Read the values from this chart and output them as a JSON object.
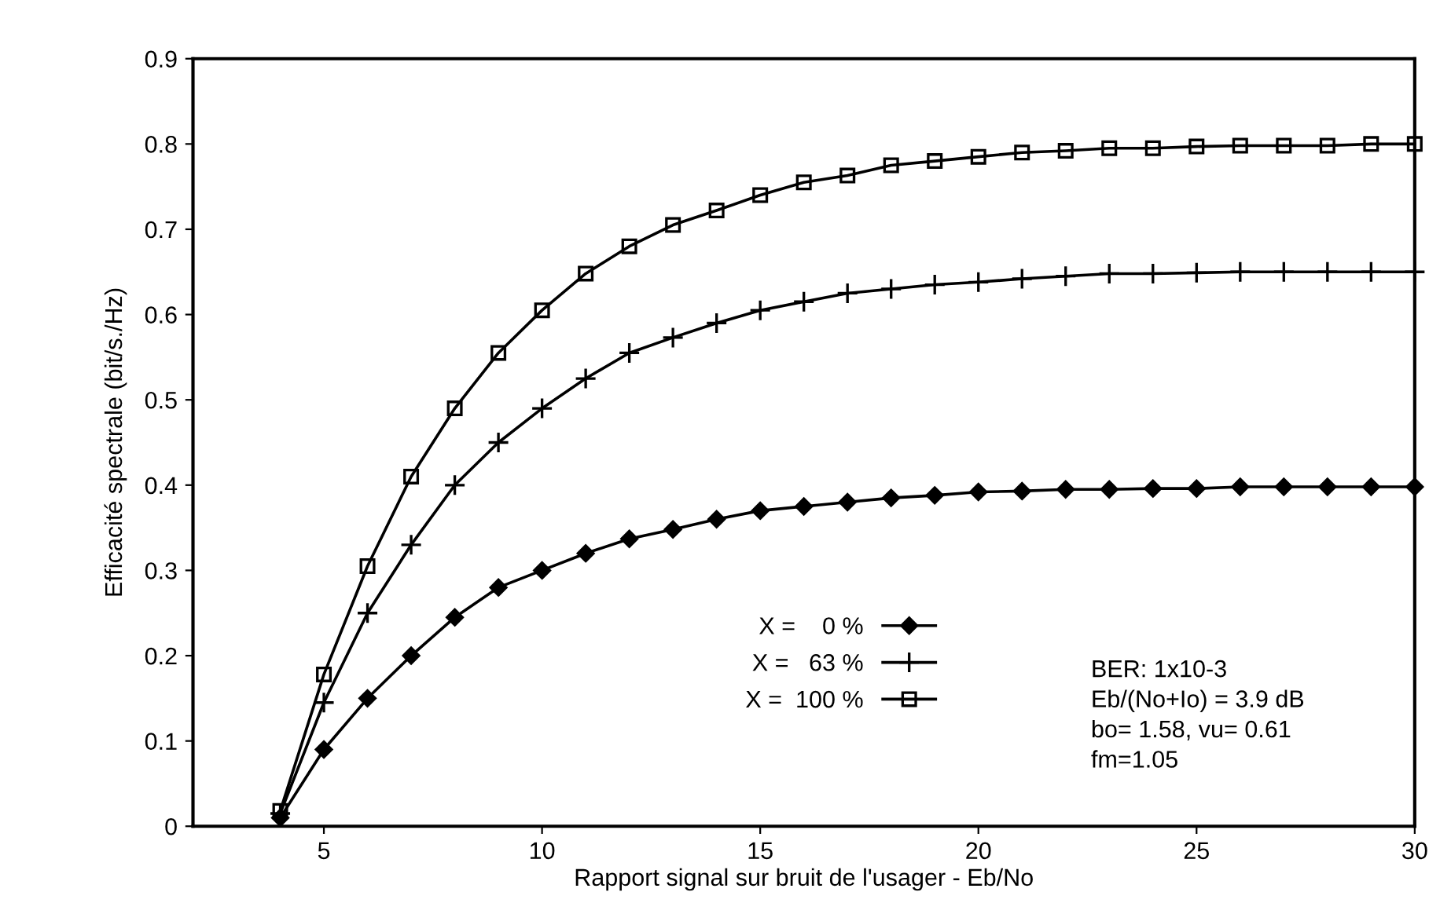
{
  "chart_data": {
    "type": "line",
    "xlabel": "Rapport signal sur bruit de l'usager - Eb/No",
    "ylabel": "Efficacité spectrale (bit/s./Hz)",
    "x": [
      4,
      5,
      6,
      7,
      8,
      9,
      10,
      11,
      12,
      13,
      14,
      15,
      16,
      17,
      18,
      19,
      20,
      21,
      22,
      23,
      24,
      25,
      26,
      27,
      28,
      29,
      30
    ],
    "series": [
      {
        "name": "X =    0 %",
        "color": "#000000",
        "marker": "diamond",
        "values": [
          0.01,
          0.09,
          0.15,
          0.2,
          0.245,
          0.28,
          0.3,
          0.32,
          0.337,
          0.348,
          0.36,
          0.37,
          0.375,
          0.38,
          0.385,
          0.388,
          0.392,
          0.393,
          0.395,
          0.395,
          0.396,
          0.396,
          0.398,
          0.398,
          0.398,
          0.398,
          0.398
        ]
      },
      {
        "name": "X =   63 %",
        "color": "#000000",
        "marker": "cross",
        "values": [
          0.015,
          0.145,
          0.25,
          0.33,
          0.4,
          0.45,
          0.49,
          0.525,
          0.555,
          0.573,
          0.59,
          0.605,
          0.615,
          0.625,
          0.63,
          0.635,
          0.638,
          0.642,
          0.645,
          0.648,
          0.648,
          0.649,
          0.65,
          0.65,
          0.65,
          0.65,
          0.65
        ]
      },
      {
        "name": "X =  100 %",
        "color": "#000000",
        "marker": "square",
        "values": [
          0.018,
          0.178,
          0.305,
          0.41,
          0.49,
          0.555,
          0.605,
          0.648,
          0.68,
          0.705,
          0.722,
          0.74,
          0.755,
          0.763,
          0.775,
          0.78,
          0.785,
          0.79,
          0.792,
          0.795,
          0.795,
          0.797,
          0.798,
          0.798,
          0.798,
          0.8,
          0.8
        ]
      }
    ],
    "xlim": [
      2,
      30
    ],
    "xticks": [
      5,
      10,
      15,
      20,
      25,
      30
    ],
    "ylim": [
      0,
      0.9
    ],
    "yticks": [
      {
        "value": 0,
        "label": "0"
      },
      0.1,
      0.2,
      0.3,
      0.4,
      0.5,
      0.6,
      0.7,
      0.8,
      0.9
    ],
    "grid": false,
    "legend": "bottom",
    "line_style": "solid",
    "annotations": [
      "BER: 1x10-3\nEb/(No+Io) = 3.9 dB\nbo= 1.58, vu= 0.61\nfm=1.05"
    ]
  }
}
